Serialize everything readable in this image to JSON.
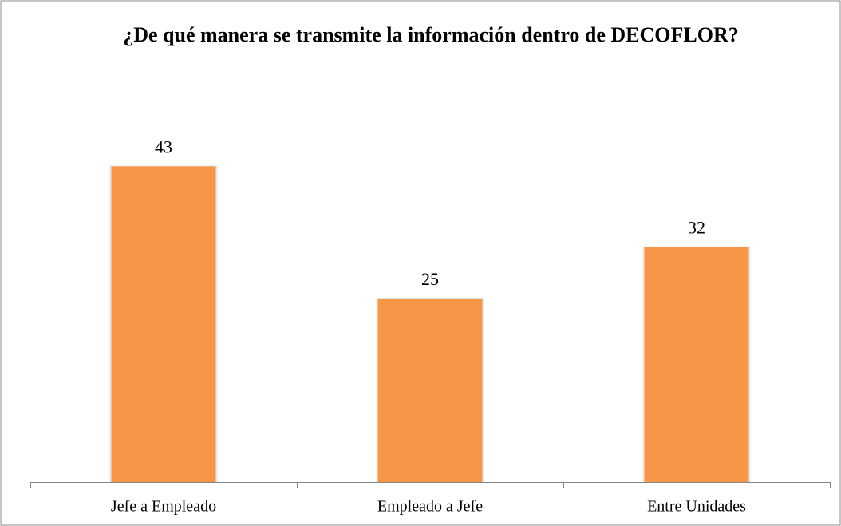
{
  "chart_data": {
    "type": "bar",
    "title": "¿De qué manera se transmite la información dentro de DECOFLOR?",
    "categories": [
      "Jefe a Empleado",
      "Empleado a Jefe",
      "Entre Unidades"
    ],
    "values": [
      43,
      25,
      32
    ],
    "color": "#f79646",
    "ylim": [
      0,
      50
    ]
  }
}
